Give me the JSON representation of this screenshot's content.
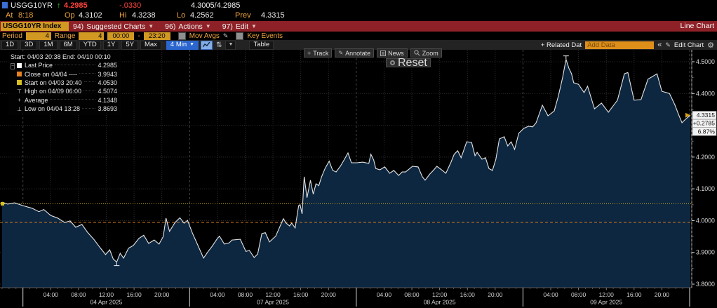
{
  "header": {
    "ticker": "USGG10YR",
    "direction_arrow": "↑",
    "last_price": "4.2985",
    "net_change": "-.0330",
    "bid_ask": "4.3005/4.2985",
    "at_label": "At",
    "at_value": "8:18",
    "stats": [
      {
        "label": "Op",
        "value": "4.3102"
      },
      {
        "label": "Hi",
        "value": "4.3238"
      },
      {
        "label": "Lo",
        "value": "4.2562"
      },
      {
        "label": "Prev",
        "value": "4.3315"
      }
    ]
  },
  "command_bar": {
    "security_box": "USGG10YR Index",
    "menus": [
      {
        "key": "94)",
        "label": "Suggested Charts"
      },
      {
        "key": "96)",
        "label": "Actions"
      },
      {
        "key": "97)",
        "label": "Edit"
      }
    ],
    "view_label": "Line Chart"
  },
  "settings_bar": {
    "period_label": "Period",
    "period_value": "4",
    "range_label": "Range",
    "range_value": "4",
    "time_from": "00:00",
    "time_sep": "-",
    "time_to": "23:20",
    "mov_avgs_label": "Mov Avgs",
    "key_events_label": "Key Events"
  },
  "toolbar": {
    "ranges": [
      "1D",
      "3D",
      "1M",
      "6M",
      "YTD",
      "1Y",
      "5Y",
      "Max"
    ],
    "interval_label": "4 Min",
    "table_label": "Table",
    "related_label": "+ Related Dat",
    "add_data_placeholder": "Add Data",
    "collapse_glyph": "«",
    "edit_chart_label": "Edit Chart"
  },
  "chart_tools": {
    "buttons": [
      "Track",
      "Annotate",
      "News",
      "Zoom"
    ],
    "reset_label": "Reset"
  },
  "legend": {
    "range_text": "Start: 04/03 20:38 End: 04/10 00:10",
    "rows": [
      {
        "marker": "swatch",
        "color": "#ffffff",
        "label": "Last Price",
        "value": "4.2985"
      },
      {
        "marker": "swatch",
        "color": "#e8821e",
        "label": "Close on 04/04 ----",
        "value": "3.9943"
      },
      {
        "marker": "swatch",
        "color": "#d8c022",
        "label": "Start on 04/03 20:40",
        "value": "4.0530"
      },
      {
        "marker": "high",
        "label": "High on 04/09 06:00",
        "value": "4.5074"
      },
      {
        "marker": "average",
        "label": "Average",
        "value": "4.1348"
      },
      {
        "marker": "low",
        "label": "Low on 04/04 13:28",
        "value": "3.8693"
      }
    ]
  },
  "colors": {
    "panel_red": "#8d2127",
    "amber_text": "#f0a43c",
    "amber_input": "#d19822",
    "price_red": "#ff433d",
    "tick_green": "#2fd12f",
    "accent_blue": "#2b66cf",
    "area_fill": "#0d2741",
    "price_line": "#e4e4e4",
    "ref_start_yellow": "#d4b11a",
    "ref_close_orange": "#d4761a"
  },
  "chart_data": {
    "type": "area",
    "title": "USGG10YR Index intraday yield",
    "x_axis": {
      "unit": "hours since 04/04 00:00 (non-trading weekend removed)",
      "min": -3.3,
      "max": 96.3,
      "day_boundaries_hours": [
        0,
        24,
        48,
        72,
        96
      ],
      "time_tick_hours": [
        4,
        8,
        12,
        16,
        20
      ],
      "time_tick_labels": [
        "04:00",
        "08:00",
        "12:00",
        "16:00",
        "20:00"
      ],
      "date_labels": [
        {
          "center_hour": 12,
          "label": "04 Apr 2025"
        },
        {
          "center_hour": 36,
          "label": "07 Apr 2025"
        },
        {
          "center_hour": 60,
          "label": "08 Apr 2025"
        },
        {
          "center_hour": 84,
          "label": "09 Apr 2025"
        }
      ]
    },
    "y_axis": {
      "min": 3.789,
      "max": 4.536,
      "grid_step": 0.1,
      "labeled_ticks": [
        4.5,
        4.4,
        4.2,
        4.1,
        4.0,
        3.9,
        3.8
      ],
      "minor_tick_step": 0.05
    },
    "grid": true,
    "legend_position": "top-left",
    "reference_lines": [
      {
        "name": "Start on 04/03 20:40",
        "value": 4.053,
        "color": "#d4b11a",
        "style": "dotted"
      },
      {
        "name": "Close on 04/04",
        "value": 3.9943,
        "color": "#d4761a",
        "style": "dashed"
      }
    ],
    "markers": {
      "high": {
        "hour": 78.2,
        "value": 4.5074
      },
      "low": {
        "hour": 13.5,
        "value": 3.8693
      },
      "average_value": 4.1348,
      "start": {
        "hour": -3.0,
        "value": 4.053
      },
      "end": {
        "hour": 96.1,
        "value": 4.3315
      }
    },
    "last_value_badge": {
      "price": "4.3315",
      "net_change": "+0.2785",
      "pct_change": "6.87%"
    },
    "series": [
      {
        "name": "USGG10YR Last Price",
        "color": "#e4e4e4",
        "points": [
          [
            -3.0,
            4.058
          ],
          [
            -2.2,
            4.052
          ],
          [
            -1.2,
            4.056
          ],
          [
            0,
            4.047
          ],
          [
            1.3,
            4.039
          ],
          [
            2.3,
            4.028
          ],
          [
            3.0,
            4.035
          ],
          [
            4.0,
            4.016
          ],
          [
            5.0,
            4.008
          ],
          [
            6.0,
            3.994
          ],
          [
            6.8,
            3.999
          ],
          [
            7.6,
            3.979
          ],
          [
            8.5,
            3.988
          ],
          [
            9.3,
            3.963
          ],
          [
            10.2,
            3.941
          ],
          [
            11.1,
            3.915
          ],
          [
            11.9,
            3.893
          ],
          [
            12.5,
            3.908
          ],
          [
            13.0,
            3.879
          ],
          [
            13.5,
            3.8693
          ],
          [
            14.0,
            3.897
          ],
          [
            14.5,
            3.882
          ],
          [
            15.2,
            3.913
          ],
          [
            15.9,
            3.922
          ],
          [
            16.7,
            3.944
          ],
          [
            17.4,
            3.954
          ],
          [
            18.1,
            3.928
          ],
          [
            18.9,
            3.939
          ],
          [
            19.6,
            3.926
          ],
          [
            20.2,
            3.95
          ],
          [
            20.6,
            4.008
          ],
          [
            21.1,
            3.966
          ],
          [
            21.9,
            3.994
          ],
          [
            22.6,
            4.009
          ],
          [
            23.2,
            3.992
          ],
          [
            23.7,
            4.001
          ],
          [
            24.4,
            3.961
          ],
          [
            25.3,
            3.917
          ],
          [
            26.0,
            3.882
          ],
          [
            26.7,
            3.904
          ],
          [
            27.2,
            3.918
          ],
          [
            28.0,
            3.944
          ],
          [
            28.3,
            3.951
          ],
          [
            29.0,
            3.926
          ],
          [
            29.7,
            3.93
          ],
          [
            30.1,
            3.939
          ],
          [
            31.3,
            3.941
          ],
          [
            32.1,
            3.903
          ],
          [
            32.6,
            3.906
          ],
          [
            33.3,
            3.884
          ],
          [
            33.8,
            3.895
          ],
          [
            34.4,
            3.959
          ],
          [
            34.9,
            3.962
          ],
          [
            35.5,
            3.933
          ],
          [
            36.4,
            3.951
          ],
          [
            37.5,
            4.006
          ],
          [
            37.9,
            3.992
          ],
          [
            38.4,
            3.983
          ],
          [
            38.7,
            3.992
          ],
          [
            39.2,
            3.977
          ],
          [
            39.7,
            4.047
          ],
          [
            39.9,
            4.05
          ],
          [
            40.2,
            4.021
          ],
          [
            40.5,
            4.138
          ],
          [
            40.9,
            4.072
          ],
          [
            41.4,
            4.127
          ],
          [
            41.8,
            4.083
          ],
          [
            42.2,
            4.116
          ],
          [
            42.6,
            4.11
          ],
          [
            43.0,
            4.138
          ],
          [
            43.5,
            4.164
          ],
          [
            44.1,
            4.187
          ],
          [
            44.6,
            4.158
          ],
          [
            45.1,
            4.153
          ],
          [
            45.7,
            4.171
          ],
          [
            46.3,
            4.193
          ],
          [
            46.8,
            4.213
          ],
          [
            47.3,
            4.182
          ],
          [
            48.1,
            4.182
          ],
          [
            48.9,
            4.184
          ],
          [
            49.8,
            4.18
          ],
          [
            50.1,
            4.209
          ],
          [
            50.5,
            4.191
          ],
          [
            50.8,
            4.164
          ],
          [
            51.4,
            4.16
          ],
          [
            52.1,
            4.169
          ],
          [
            52.8,
            4.149
          ],
          [
            53.4,
            4.158
          ],
          [
            54.1,
            4.142
          ],
          [
            54.6,
            4.153
          ],
          [
            55.1,
            4.153
          ],
          [
            55.7,
            4.164
          ],
          [
            56.1,
            4.171
          ],
          [
            56.9,
            4.169
          ],
          [
            57.5,
            4.138
          ],
          [
            57.9,
            4.127
          ],
          [
            58.6,
            4.147
          ],
          [
            59.1,
            4.158
          ],
          [
            59.6,
            4.171
          ],
          [
            60.4,
            4.158
          ],
          [
            60.9,
            4.149
          ],
          [
            61.6,
            4.182
          ],
          [
            62.1,
            4.209
          ],
          [
            62.6,
            4.22
          ],
          [
            63.1,
            4.198
          ],
          [
            63.9,
            4.248
          ],
          [
            64.6,
            4.246
          ],
          [
            65.1,
            4.204
          ],
          [
            65.4,
            4.215
          ],
          [
            66.1,
            4.193
          ],
          [
            66.6,
            4.198
          ],
          [
            67.1,
            4.164
          ],
          [
            67.6,
            4.158
          ],
          [
            68.1,
            4.193
          ],
          [
            68.6,
            4.257
          ],
          [
            69.3,
            4.264
          ],
          [
            69.8,
            4.235
          ],
          [
            70.3,
            4.248
          ],
          [
            70.8,
            4.224
          ],
          [
            71.4,
            4.275
          ],
          [
            72.1,
            4.29
          ],
          [
            72.8,
            4.297
          ],
          [
            73.4,
            4.295
          ],
          [
            73.9,
            4.308
          ],
          [
            74.8,
            4.363
          ],
          [
            75.6,
            4.33
          ],
          [
            76.5,
            4.345
          ],
          [
            77.1,
            4.392
          ],
          [
            77.7,
            4.45
          ],
          [
            78.2,
            4.5074
          ],
          [
            78.6,
            4.48
          ],
          [
            79.0,
            4.462
          ],
          [
            79.3,
            4.434
          ],
          [
            80.0,
            4.429
          ],
          [
            80.8,
            4.403
          ],
          [
            81.3,
            4.423
          ],
          [
            82.3,
            4.352
          ],
          [
            83.3,
            4.37
          ],
          [
            84.3,
            4.341
          ],
          [
            85.6,
            4.379
          ],
          [
            86.6,
            4.462
          ],
          [
            87.1,
            4.466
          ],
          [
            88.0,
            4.379
          ],
          [
            89.0,
            4.381
          ],
          [
            90.0,
            4.445
          ],
          [
            91.3,
            4.462
          ],
          [
            92.0,
            4.407
          ],
          [
            93.1,
            4.4
          ],
          [
            93.9,
            4.363
          ],
          [
            94.4,
            4.334
          ],
          [
            94.9,
            4.308
          ],
          [
            95.4,
            4.319
          ],
          [
            96.1,
            4.3315
          ]
        ]
      }
    ]
  }
}
